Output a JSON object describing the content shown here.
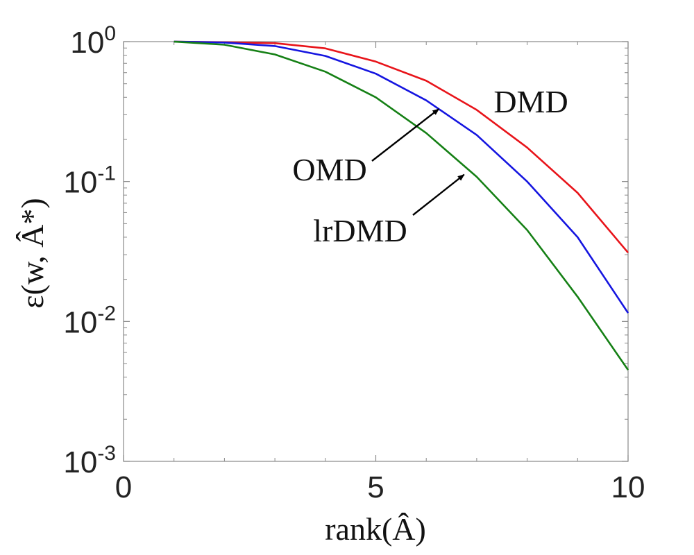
{
  "chart_data": {
    "type": "line",
    "x_scale": "linear",
    "y_scale": "log",
    "xlim": [
      0,
      10
    ],
    "ylim": [
      0.001,
      1
    ],
    "x_ticks": [
      {
        "value": 0,
        "label": "0"
      },
      {
        "value": 5,
        "label": "5"
      },
      {
        "value": 10,
        "label": "10"
      }
    ],
    "y_ticks": [
      {
        "value": 1,
        "base": "10",
        "exp": "0"
      },
      {
        "value": 0.1,
        "base": "10",
        "exp": "-1"
      },
      {
        "value": 0.01,
        "base": "10",
        "exp": "-2"
      },
      {
        "value": 0.001,
        "base": "10",
        "exp": "-3"
      }
    ],
    "xlabel": "rank(Â)",
    "ylabel": "ε(w, Â*)",
    "grid": false,
    "x": [
      1,
      2,
      3,
      4,
      5,
      6,
      7,
      8,
      9,
      10
    ],
    "series": [
      {
        "name": "DMD",
        "color": "#e8141a",
        "values": [
          1.0,
          0.99,
          0.975,
          0.895,
          0.72,
          0.525,
          0.325,
          0.175,
          0.083,
          0.031
        ]
      },
      {
        "name": "OMD",
        "color": "#1515e0",
        "values": [
          1.0,
          0.985,
          0.93,
          0.79,
          0.59,
          0.38,
          0.215,
          0.1,
          0.04,
          0.0115
        ]
      },
      {
        "name": "lrDMD",
        "color": "#158015",
        "values": [
          1.0,
          0.95,
          0.81,
          0.61,
          0.4,
          0.222,
          0.108,
          0.045,
          0.015,
          0.0045
        ]
      }
    ],
    "annotations": [
      {
        "text": "DMD",
        "target_series": "DMD",
        "arrow": false
      },
      {
        "text": "OMD",
        "target_series": "OMD",
        "arrow": true,
        "arrow_to": {
          "x": 6.25,
          "y": 0.33
        }
      },
      {
        "text": "lrDMD",
        "target_series": "lrDMD",
        "arrow": true,
        "arrow_to": {
          "x": 6.75,
          "y": 0.112
        }
      }
    ]
  }
}
